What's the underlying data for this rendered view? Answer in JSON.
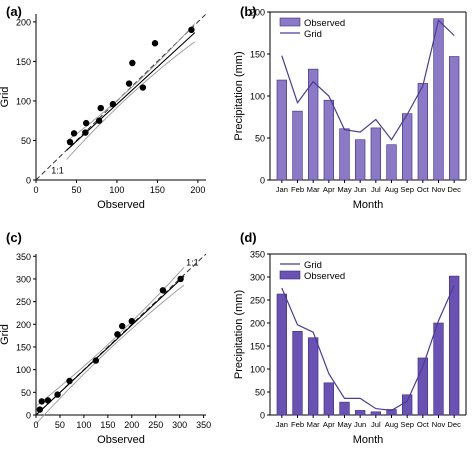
{
  "colors": {
    "bar_light": "#8a79c6",
    "bar_dark": "#6a52b4",
    "line": "#4b3a9a",
    "point": "#000000",
    "ci": "#9a9a9a",
    "axis": "#000000"
  },
  "month_labels": [
    "Jan",
    "Feb",
    "Mar",
    "Apr",
    "May",
    "Jun",
    "Jul",
    "Aug",
    "Sep",
    "Oct",
    "Nov",
    "Dec"
  ],
  "chart_data": [
    {
      "panel": "(a)",
      "type": "scatter",
      "xlabel": "Observed",
      "ylabel": "Grid",
      "xlim": [
        0,
        210
      ],
      "ylim": [
        0,
        210
      ],
      "xticks": [
        0,
        50,
        100,
        150,
        200
      ],
      "yticks": [
        0,
        50,
        100,
        150,
        200
      ],
      "ref_label": "1:1",
      "fit": {
        "slope": 0.94,
        "intercept": 2
      },
      "points": [
        {
          "x": 42,
          "y": 48
        },
        {
          "x": 47,
          "y": 59
        },
        {
          "x": 61,
          "y": 60
        },
        {
          "x": 62,
          "y": 72
        },
        {
          "x": 78,
          "y": 75
        },
        {
          "x": 80,
          "y": 91
        },
        {
          "x": 95,
          "y": 96
        },
        {
          "x": 115,
          "y": 122
        },
        {
          "x": 119,
          "y": 148
        },
        {
          "x": 132,
          "y": 117
        },
        {
          "x": 147,
          "y": 173
        },
        {
          "x": 192,
          "y": 190
        }
      ]
    },
    {
      "panel": "(b)",
      "type": "bar",
      "xlabel": "Month",
      "ylabel": "Precipitation (mm)",
      "ylim": [
        0,
        200
      ],
      "yticks": [
        0,
        50,
        100,
        150,
        200
      ],
      "legend_position": "top-left",
      "categories": [
        "Jan",
        "Feb",
        "Mar",
        "Apr",
        "May",
        "Jun",
        "Jul",
        "Aug",
        "Sep",
        "Oct",
        "Nov",
        "Dec"
      ],
      "series": [
        {
          "name": "Observed",
          "kind": "bar",
          "values": [
            119,
            82,
            132,
            95,
            61,
            48,
            62,
            42,
            79,
            115,
            192,
            147
          ]
        },
        {
          "name": "Grid",
          "kind": "line",
          "values": [
            148,
            92,
            117,
            100,
            60,
            57,
            72,
            48,
            78,
            112,
            190,
            172
          ]
        }
      ]
    },
    {
      "panel": "(c)",
      "type": "scatter",
      "xlabel": "Observed",
      "ylabel": "Grid",
      "xlim": [
        0,
        355
      ],
      "ylim": [
        0,
        355
      ],
      "xticks": [
        0,
        50,
        100,
        150,
        200,
        250,
        300,
        350
      ],
      "yticks": [
        0,
        50,
        100,
        150,
        200,
        250,
        300,
        350
      ],
      "ref_label": "1:1",
      "fit": {
        "slope": 0.99,
        "intercept": 0
      },
      "points": [
        {
          "x": 8,
          "y": 12
        },
        {
          "x": 12,
          "y": 30
        },
        {
          "x": 25,
          "y": 32
        },
        {
          "x": 45,
          "y": 45
        },
        {
          "x": 70,
          "y": 75
        },
        {
          "x": 125,
          "y": 120
        },
        {
          "x": 170,
          "y": 178
        },
        {
          "x": 180,
          "y": 196
        },
        {
          "x": 200,
          "y": 207
        },
        {
          "x": 265,
          "y": 275
        },
        {
          "x": 302,
          "y": 300
        }
      ]
    },
    {
      "panel": "(d)",
      "type": "bar",
      "xlabel": "Month",
      "ylabel": "Precipitation (mm)",
      "ylim": [
        0,
        350
      ],
      "yticks": [
        0,
        50,
        100,
        150,
        200,
        250,
        300,
        350
      ],
      "legend_position": "top-left",
      "categories": [
        "Jan",
        "Feb",
        "Mar",
        "Apr",
        "May",
        "Jun",
        "Jul",
        "Aug",
        "Sep",
        "Oct",
        "Nov",
        "Dec"
      ],
      "series": [
        {
          "name": "Grid",
          "kind": "line",
          "values": [
            276,
            196,
            180,
            90,
            36,
            36,
            14,
            10,
            30,
            105,
            205,
            282
          ]
        },
        {
          "name": "Observed",
          "kind": "bar",
          "values": [
            263,
            182,
            168,
            70,
            28,
            10,
            7,
            12,
            44,
            124,
            200,
            302
          ]
        }
      ]
    }
  ]
}
